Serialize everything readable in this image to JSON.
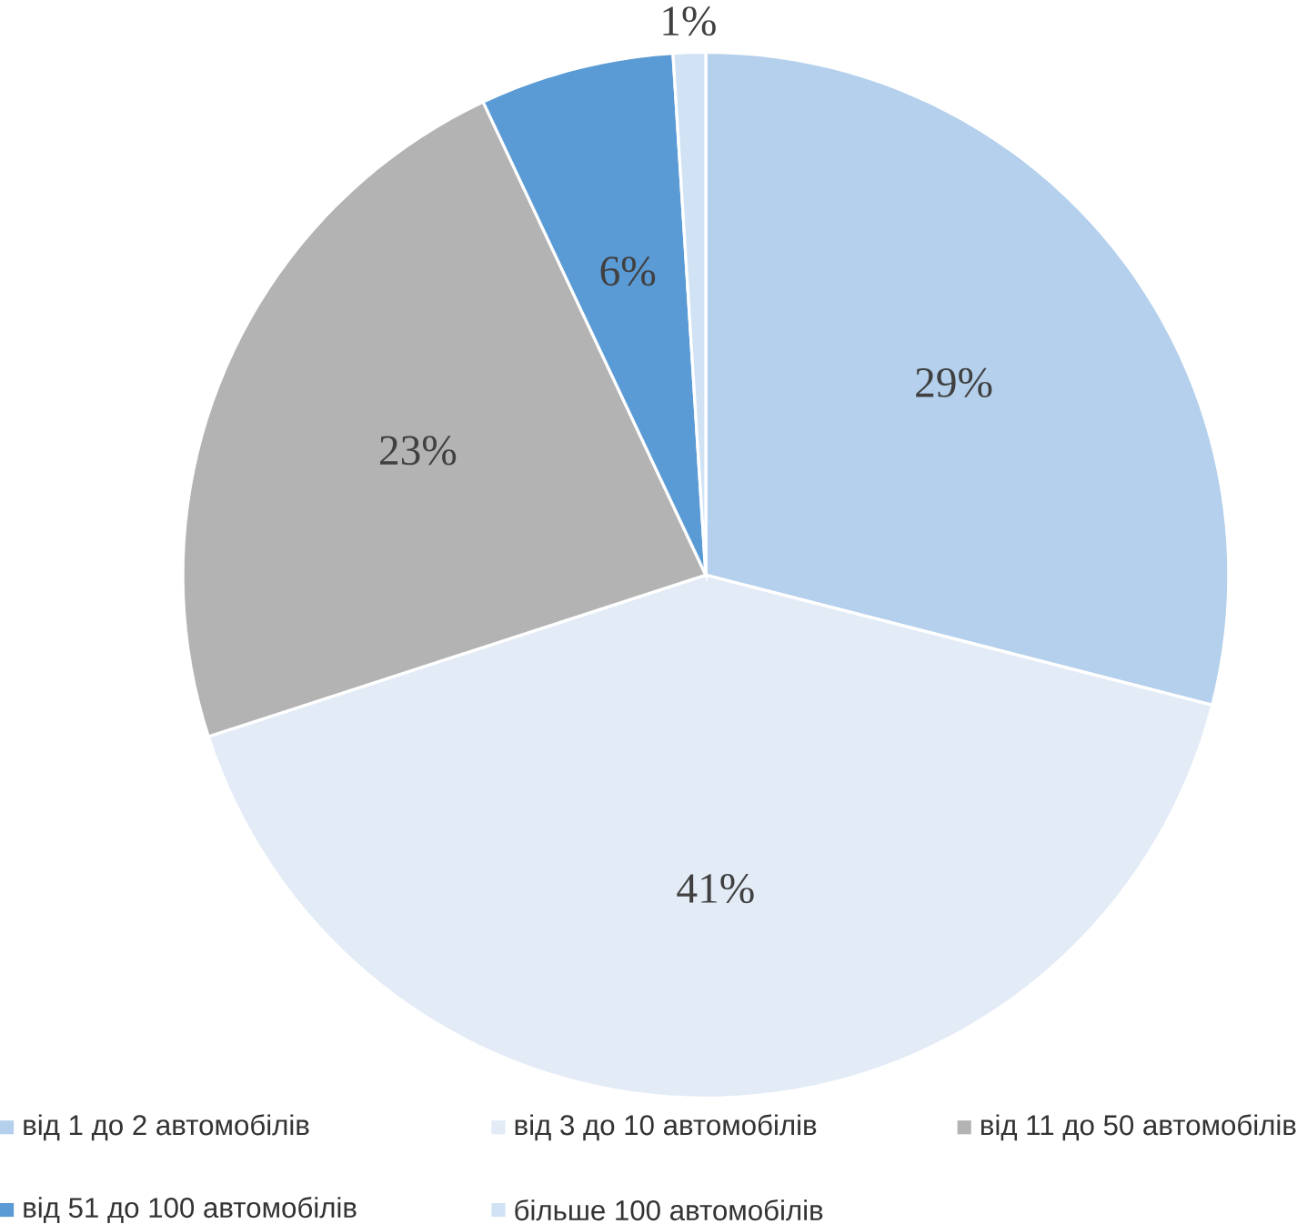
{
  "chart_data": {
    "type": "pie",
    "categories": [
      "від 1 до 2 автомобілів",
      "від 3 до 10 автомобілів",
      "від 11 до 50 автомобілів",
      "від 51 до 100 автомобілів",
      "більше 100 автомобілів"
    ],
    "values": [
      29,
      41,
      23,
      6,
      1
    ],
    "value_labels": [
      "29%",
      "41%",
      "23%",
      "6%",
      "1%"
    ],
    "colors": [
      "#b4d0ec",
      "#e2ebf6",
      "#b3b3b3",
      "#5b9bd5",
      "#d0e2f3"
    ],
    "legend": "bottom"
  }
}
